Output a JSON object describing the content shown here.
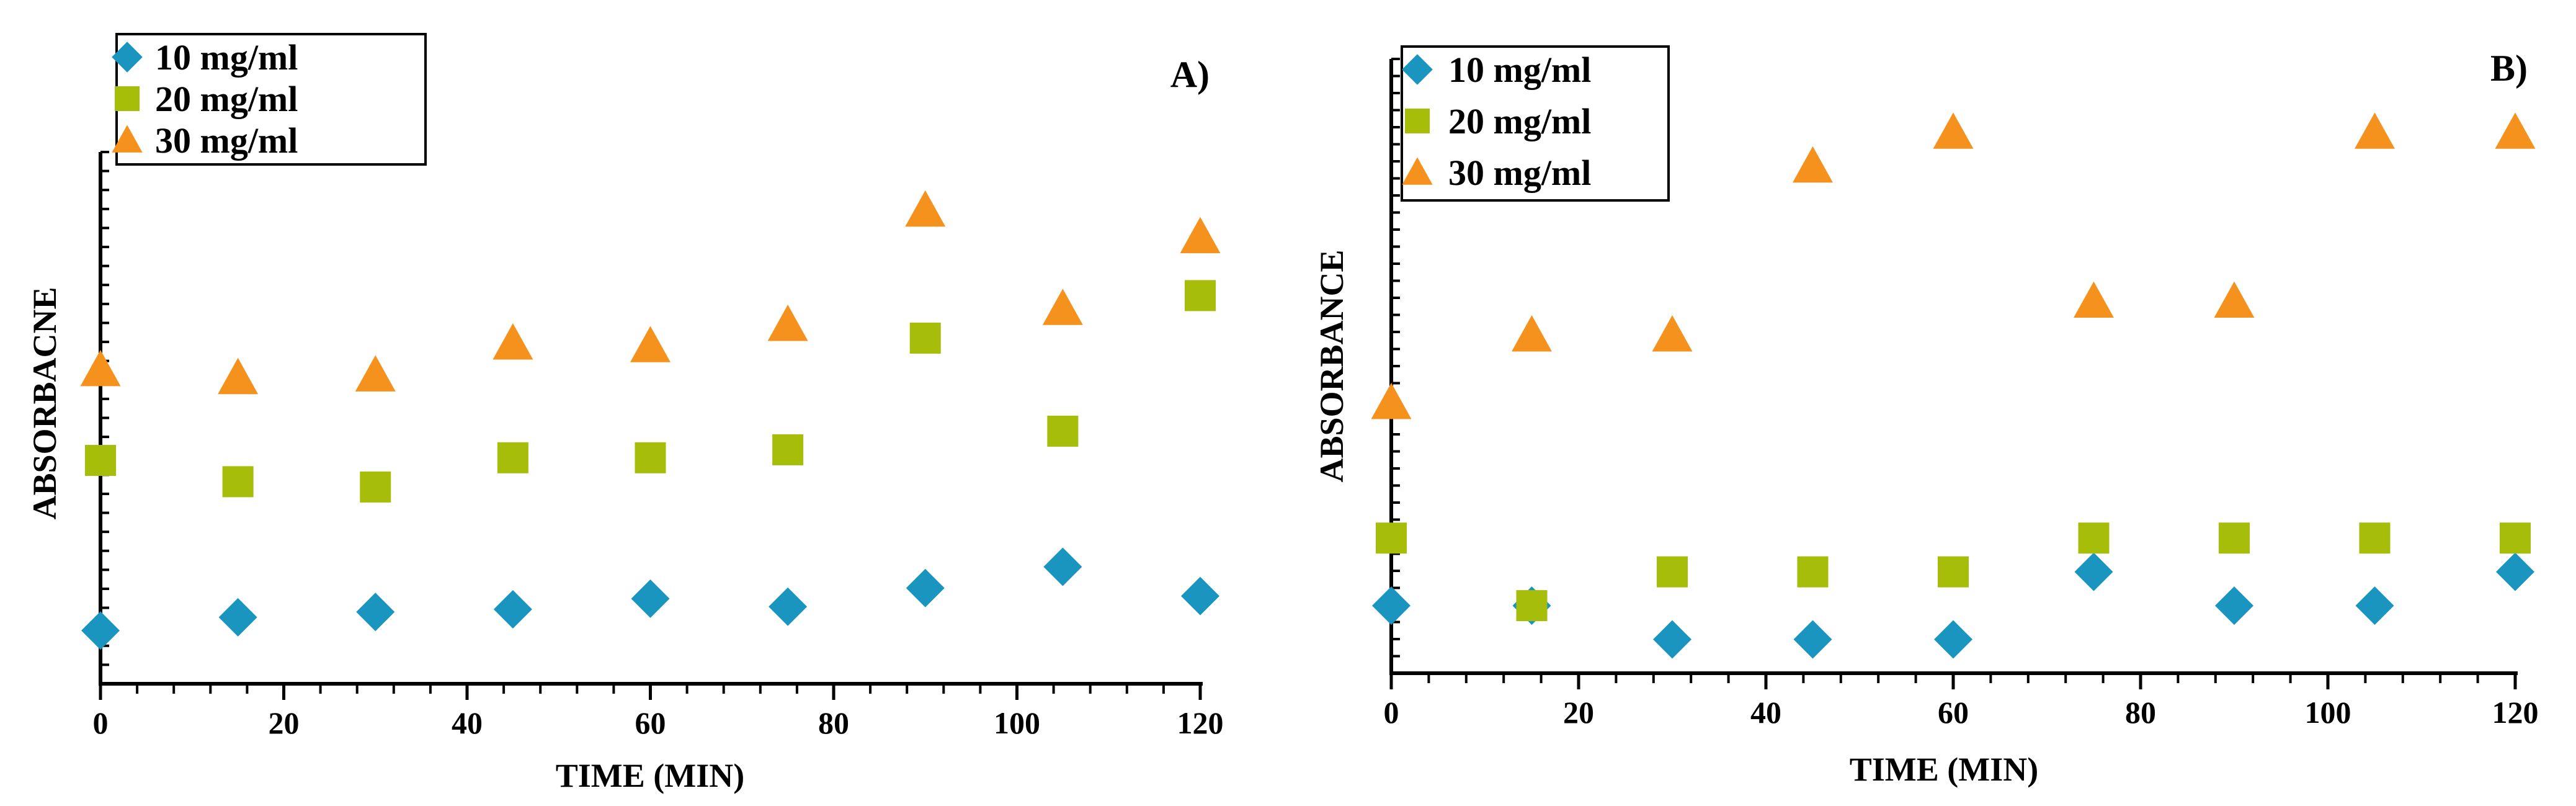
{
  "colors": {
    "series_10": "#1a95c0",
    "series_20": "#a6bd0a",
    "series_30": "#f5921e",
    "axis": "#000000"
  },
  "chart_data": [
    {
      "type": "scatter",
      "panel_label": "A)",
      "xlabel": "TIME  (MIN)",
      "ylabel": "ABSORBACNE",
      "xlim": [
        0,
        120
      ],
      "ylim": [
        0,
        1
      ],
      "x_ticks": [
        "0",
        "20",
        "40",
        "60",
        "80",
        "100",
        "120"
      ],
      "legend_position": "top-left",
      "grid": false,
      "series": [
        {
          "name": "10 mg/ml",
          "marker": "diamond",
          "x": [
            0,
            15,
            30,
            45,
            60,
            75,
            90,
            105,
            120
          ],
          "y": [
            0.1,
            0.125,
            0.135,
            0.14,
            0.16,
            0.145,
            0.18,
            0.22,
            0.165
          ]
        },
        {
          "name": "20 mg/ml",
          "marker": "square",
          "x": [
            0,
            15,
            30,
            45,
            60,
            75,
            90,
            105,
            120
          ],
          "y": [
            0.42,
            0.38,
            0.37,
            0.425,
            0.425,
            0.44,
            0.65,
            0.475,
            0.73
          ]
        },
        {
          "name": "30 mg/ml",
          "marker": "triangle",
          "x": [
            0,
            15,
            30,
            45,
            60,
            75,
            90,
            105,
            120
          ],
          "y": [
            0.59,
            0.575,
            0.58,
            0.64,
            0.635,
            0.675,
            0.89,
            0.705,
            0.84
          ]
        }
      ]
    },
    {
      "type": "scatter",
      "panel_label": "B)",
      "xlabel": "TIME (MIN)",
      "ylabel": "ABSORBANCE",
      "xlim": [
        0,
        120
      ],
      "ylim": [
        0,
        1
      ],
      "x_ticks": [
        "0",
        "20",
        "40",
        "60",
        "80",
        "100",
        "120"
      ],
      "legend_position": "top-left",
      "grid": false,
      "series": [
        {
          "name": "10 mg/ml",
          "marker": "diamond",
          "x": [
            0,
            15,
            30,
            45,
            60,
            75,
            90,
            105,
            120
          ],
          "y": [
            0.11,
            0.11,
            0.055,
            0.055,
            0.055,
            0.165,
            0.11,
            0.11,
            0.165
          ]
        },
        {
          "name": "20 mg/ml",
          "marker": "square",
          "x": [
            0,
            15,
            30,
            45,
            60,
            75,
            90,
            105,
            120
          ],
          "y": [
            0.22,
            0.11,
            0.165,
            0.165,
            0.165,
            0.22,
            0.22,
            0.22,
            0.22
          ]
        },
        {
          "name": "30 mg/ml",
          "marker": "triangle",
          "x": [
            0,
            15,
            30,
            45,
            60,
            75,
            90,
            105,
            120
          ],
          "y": [
            0.44,
            0.55,
            0.55,
            0.825,
            0.88,
            0.605,
            0.605,
            0.88,
            0.88
          ]
        }
      ]
    }
  ]
}
